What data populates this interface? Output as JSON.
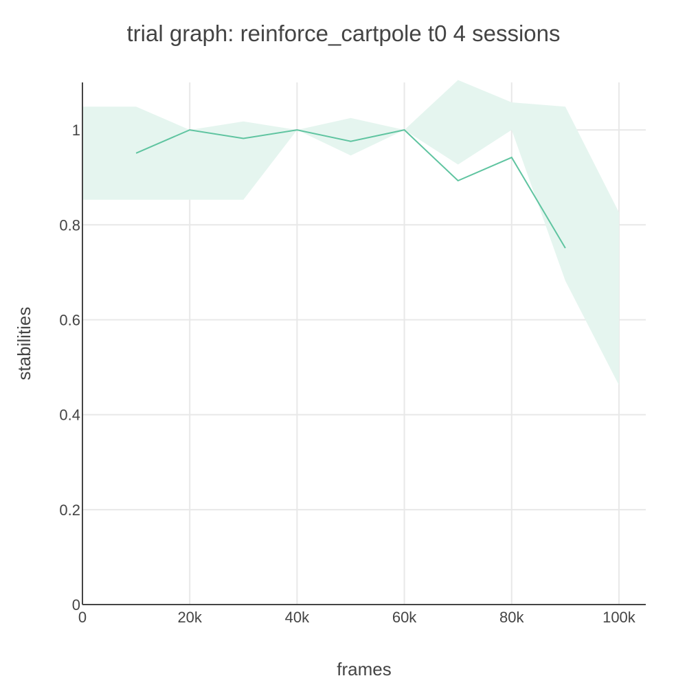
{
  "chart_data": {
    "type": "line",
    "title": "trial graph: reinforce_cartpole t0 4 sessions",
    "xlabel": "frames",
    "ylabel": "stabilities",
    "xlim": [
      0,
      105000
    ],
    "ylim": [
      0,
      1.1
    ],
    "xticks": [
      {
        "value": 0,
        "label": "0"
      },
      {
        "value": 20000,
        "label": "20k"
      },
      {
        "value": 40000,
        "label": "40k"
      },
      {
        "value": 60000,
        "label": "60k"
      },
      {
        "value": 80000,
        "label": "80k"
      },
      {
        "value": 100000,
        "label": "100k"
      }
    ],
    "yticks": [
      {
        "value": 0,
        "label": "0"
      },
      {
        "value": 0.2,
        "label": "0.2"
      },
      {
        "value": 0.4,
        "label": "0.4"
      },
      {
        "value": 0.6,
        "label": "0.6"
      },
      {
        "value": 0.8,
        "label": "0.8"
      },
      {
        "value": 1,
        "label": "1"
      }
    ],
    "grid": true,
    "legend": "none",
    "colors": {
      "line": "#5fc4a0",
      "band": "#e5f5ef",
      "grid": "#e8e8e8",
      "axis": "#444444",
      "text": "#444444"
    },
    "series": [
      {
        "x": [
          10000,
          20000,
          30000,
          40000,
          50000,
          60000,
          70000,
          80000,
          90000
        ],
        "values": [
          0.951,
          1.0,
          0.982,
          1.0,
          0.976,
          1.0,
          0.893,
          0.942,
          0.751
        ]
      }
    ],
    "band": {
      "x": [
        0,
        10000,
        20000,
        30000,
        40000,
        50000,
        60000,
        70000,
        80000,
        90000,
        100000
      ],
      "upper": [
        1.049,
        1.049,
        1.0,
        1.018,
        1.0,
        1.025,
        1.0,
        1.105,
        1.058,
        1.049,
        0.826
      ],
      "lower": [
        0.853,
        0.853,
        0.853,
        0.853,
        1.0,
        0.946,
        1.0,
        0.927,
        1.0,
        0.682,
        0.462
      ]
    }
  }
}
